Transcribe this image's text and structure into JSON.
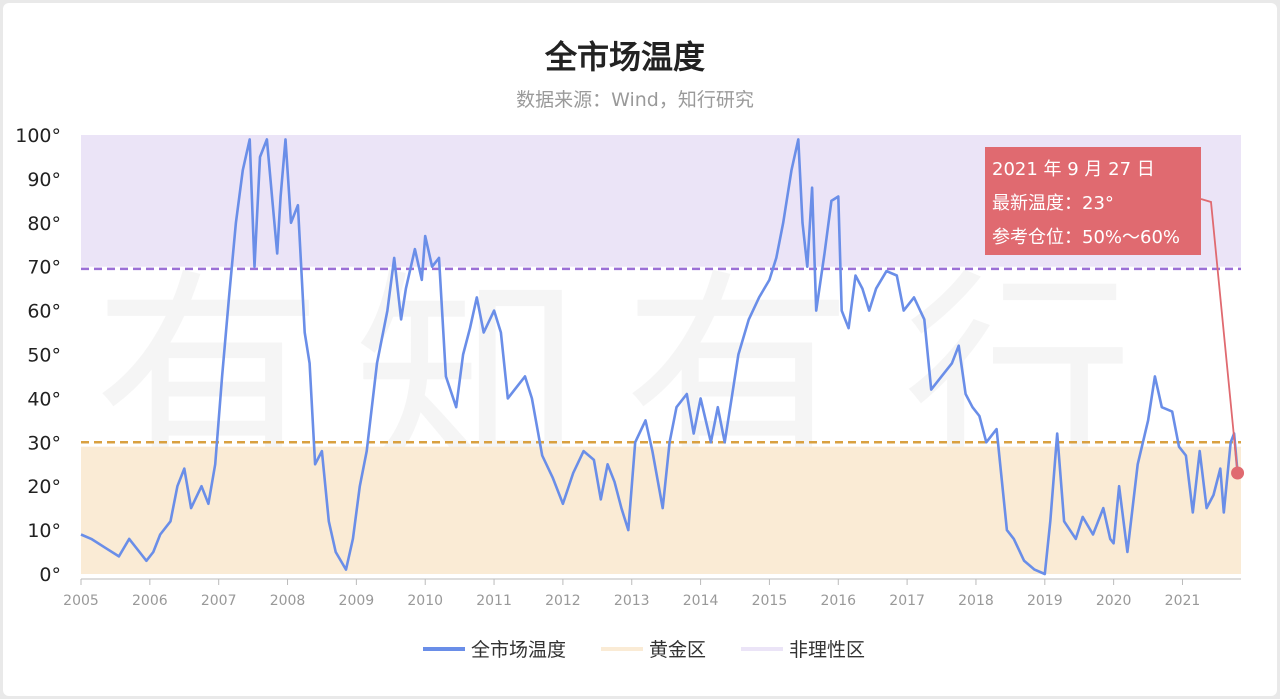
{
  "chart_data": {
    "type": "line",
    "title": "全市场温度",
    "subtitle": "数据来源：Wind，知行研究",
    "xlabel": "",
    "ylabel": "",
    "xlim": [
      2005.0,
      2021.85
    ],
    "ylim": [
      0,
      100
    ],
    "x_ticks": [
      "2005",
      "2006",
      "2007",
      "2008",
      "2009",
      "2010",
      "2011",
      "2012",
      "2013",
      "2014",
      "2015",
      "2016",
      "2017",
      "2018",
      "2019",
      "2020",
      "2021"
    ],
    "y_ticks": [
      "0°",
      "10°",
      "20°",
      "30°",
      "40°",
      "50°",
      "60°",
      "70°",
      "80°",
      "90°",
      "100°"
    ],
    "grid": false,
    "legend_position": "bottom",
    "bands": [
      {
        "name": "黄金区",
        "from": 0,
        "to": 29,
        "color": "#faebd5",
        "line_at": 30,
        "line_color": "#d9a040"
      },
      {
        "name": "非理性区",
        "from": 70,
        "to": 100,
        "color": "#ebe4f7",
        "line_at": 69.5,
        "line_color": "#9b6fd6"
      }
    ],
    "series": [
      {
        "name": "全市场温度",
        "color": "#6a8ee8",
        "points": [
          [
            2005.0,
            9
          ],
          [
            2005.15,
            8
          ],
          [
            2005.35,
            6
          ],
          [
            2005.55,
            4
          ],
          [
            2005.7,
            8
          ],
          [
            2005.85,
            5
          ],
          [
            2005.95,
            3
          ],
          [
            2006.05,
            5
          ],
          [
            2006.15,
            9
          ],
          [
            2006.3,
            12
          ],
          [
            2006.4,
            20
          ],
          [
            2006.5,
            24
          ],
          [
            2006.6,
            15
          ],
          [
            2006.75,
            20
          ],
          [
            2006.85,
            16
          ],
          [
            2006.95,
            25
          ],
          [
            2007.05,
            45
          ],
          [
            2007.15,
            63
          ],
          [
            2007.25,
            80
          ],
          [
            2007.35,
            92
          ],
          [
            2007.45,
            99
          ],
          [
            2007.52,
            70
          ],
          [
            2007.6,
            95
          ],
          [
            2007.7,
            99
          ],
          [
            2007.78,
            85
          ],
          [
            2007.85,
            73
          ],
          [
            2007.9,
            86
          ],
          [
            2007.97,
            99
          ],
          [
            2008.05,
            80
          ],
          [
            2008.15,
            84
          ],
          [
            2008.25,
            55
          ],
          [
            2008.32,
            48
          ],
          [
            2008.4,
            25
          ],
          [
            2008.5,
            28
          ],
          [
            2008.6,
            12
          ],
          [
            2008.7,
            5
          ],
          [
            2008.85,
            1
          ],
          [
            2008.95,
            8
          ],
          [
            2009.05,
            20
          ],
          [
            2009.15,
            28
          ],
          [
            2009.3,
            48
          ],
          [
            2009.45,
            60
          ],
          [
            2009.55,
            72
          ],
          [
            2009.65,
            58
          ],
          [
            2009.72,
            65
          ],
          [
            2009.85,
            74
          ],
          [
            2009.95,
            67
          ],
          [
            2010.0,
            77
          ],
          [
            2010.1,
            70
          ],
          [
            2010.2,
            72
          ],
          [
            2010.3,
            45
          ],
          [
            2010.45,
            38
          ],
          [
            2010.55,
            50
          ],
          [
            2010.65,
            56
          ],
          [
            2010.75,
            63
          ],
          [
            2010.85,
            55
          ],
          [
            2011.0,
            60
          ],
          [
            2011.1,
            55
          ],
          [
            2011.2,
            40
          ],
          [
            2011.3,
            42
          ],
          [
            2011.45,
            45
          ],
          [
            2011.55,
            40
          ],
          [
            2011.7,
            27
          ],
          [
            2011.85,
            22
          ],
          [
            2012.0,
            16
          ],
          [
            2012.15,
            23
          ],
          [
            2012.3,
            28
          ],
          [
            2012.45,
            26
          ],
          [
            2012.55,
            17
          ],
          [
            2012.65,
            25
          ],
          [
            2012.75,
            21
          ],
          [
            2012.85,
            15
          ],
          [
            2012.95,
            10
          ],
          [
            2013.05,
            30
          ],
          [
            2013.2,
            35
          ],
          [
            2013.3,
            28
          ],
          [
            2013.45,
            15
          ],
          [
            2013.55,
            30
          ],
          [
            2013.65,
            38
          ],
          [
            2013.8,
            41
          ],
          [
            2013.9,
            32
          ],
          [
            2014.0,
            40
          ],
          [
            2014.15,
            30
          ],
          [
            2014.25,
            38
          ],
          [
            2014.35,
            30
          ],
          [
            2014.45,
            40
          ],
          [
            2014.55,
            50
          ],
          [
            2014.7,
            58
          ],
          [
            2014.85,
            63
          ],
          [
            2015.0,
            67
          ],
          [
            2015.1,
            72
          ],
          [
            2015.2,
            80
          ],
          [
            2015.32,
            92
          ],
          [
            2015.42,
            99
          ],
          [
            2015.48,
            80
          ],
          [
            2015.55,
            70
          ],
          [
            2015.62,
            88
          ],
          [
            2015.68,
            60
          ],
          [
            2015.8,
            73
          ],
          [
            2015.9,
            85
          ],
          [
            2016.0,
            86
          ],
          [
            2016.05,
            60
          ],
          [
            2016.15,
            56
          ],
          [
            2016.25,
            68
          ],
          [
            2016.35,
            65
          ],
          [
            2016.45,
            60
          ],
          [
            2016.55,
            65
          ],
          [
            2016.7,
            69
          ],
          [
            2016.85,
            68
          ],
          [
            2016.95,
            60
          ],
          [
            2017.1,
            63
          ],
          [
            2017.25,
            58
          ],
          [
            2017.35,
            42
          ],
          [
            2017.5,
            45
          ],
          [
            2017.65,
            48
          ],
          [
            2017.75,
            52
          ],
          [
            2017.85,
            41
          ],
          [
            2017.95,
            38
          ],
          [
            2018.05,
            36
          ],
          [
            2018.15,
            30
          ],
          [
            2018.3,
            33
          ],
          [
            2018.45,
            10
          ],
          [
            2018.55,
            8
          ],
          [
            2018.7,
            3
          ],
          [
            2018.85,
            1
          ],
          [
            2019.0,
            0
          ],
          [
            2019.08,
            12
          ],
          [
            2019.18,
            32
          ],
          [
            2019.28,
            12
          ],
          [
            2019.45,
            8
          ],
          [
            2019.55,
            13
          ],
          [
            2019.7,
            9
          ],
          [
            2019.85,
            15
          ],
          [
            2019.95,
            8
          ],
          [
            2020.0,
            7
          ],
          [
            2020.08,
            20
          ],
          [
            2020.2,
            5
          ],
          [
            2020.35,
            25
          ],
          [
            2020.5,
            35
          ],
          [
            2020.6,
            45
          ],
          [
            2020.7,
            38
          ],
          [
            2020.85,
            37
          ],
          [
            2020.95,
            29
          ],
          [
            2021.05,
            27
          ],
          [
            2021.15,
            14
          ],
          [
            2021.25,
            28
          ],
          [
            2021.35,
            15
          ],
          [
            2021.45,
            18
          ],
          [
            2021.55,
            24
          ],
          [
            2021.6,
            14
          ],
          [
            2021.7,
            30
          ],
          [
            2021.75,
            32
          ],
          [
            2021.8,
            23
          ]
        ]
      }
    ],
    "annotation": {
      "lines": [
        "2021 年 9 月 27 日",
        "最新温度：23°",
        "参考仓位：50%～60%"
      ],
      "point": [
        2021.8,
        23
      ],
      "color": "#e06a70"
    },
    "watermark": [
      "有",
      "知",
      "有",
      "行"
    ]
  }
}
